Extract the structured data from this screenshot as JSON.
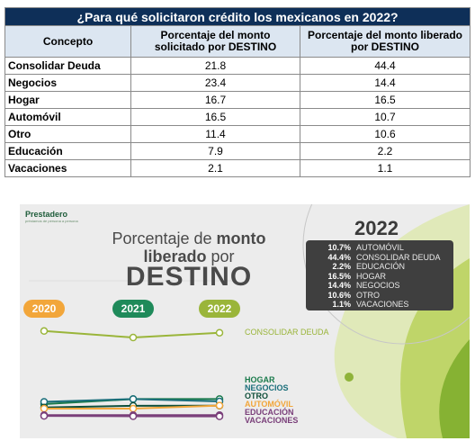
{
  "table": {
    "title": "¿Para qué solicitaron crédito los mexicanos en 2022?",
    "headers": [
      "Concepto",
      "Porcentaje del monto solicitado por DESTINO",
      "Porcentaje del monto liberado por DESTINO"
    ],
    "rows": [
      {
        "concepto": "Consolidar Deuda",
        "solicitado": "21.8",
        "liberado": "44.4"
      },
      {
        "concepto": "Negocios",
        "solicitado": "23.4",
        "liberado": "14.4"
      },
      {
        "concepto": "Hogar",
        "solicitado": "16.7",
        "liberado": "16.5"
      },
      {
        "concepto": "Automóvil",
        "solicitado": "16.5",
        "liberado": "10.7"
      },
      {
        "concepto": "Otro",
        "solicitado": "11.4",
        "liberado": "10.6"
      },
      {
        "concepto": "Educación",
        "solicitado": "7.9",
        "liberado": "2.2"
      },
      {
        "concepto": "Vacaciones",
        "solicitado": "2.1",
        "liberado": "1.1"
      }
    ]
  },
  "infographic": {
    "logo": "Prestadero",
    "logo_tagline": "préstamos de persona a persona",
    "heading_line1_a": "Porcentaje de ",
    "heading_line1_b": "monto",
    "heading_line2_a": "liberado",
    "heading_line2_b": " por",
    "heading_line3": "DESTINO",
    "year_title": "2022",
    "legend": [
      {
        "pct": "10.7%",
        "label": "AUTOMÓVIL"
      },
      {
        "pct": "44.4%",
        "label": "CONSOLIDAR DEUDA"
      },
      {
        "pct": "2.2%",
        "label": "EDUCACIÓN"
      },
      {
        "pct": "16.5%",
        "label": "HOGAR"
      },
      {
        "pct": "14.4%",
        "label": "NEGOCIOS"
      },
      {
        "pct": "10.6%",
        "label": "OTRO"
      },
      {
        "pct": "1.1%",
        "label": "VACACIONES"
      }
    ],
    "colors": {
      "y2020": "#f2a63a",
      "y2021": "#1f8a5a",
      "y2022": "#9ab53a"
    }
  },
  "chart_data": {
    "type": "line",
    "title": "Porcentaje de monto liberado por DESTINO",
    "x": [
      "2020",
      "2021",
      "2022"
    ],
    "series": [
      {
        "name": "CONSOLIDAR DEUDA",
        "color": "#9ab53a",
        "values": [
          46,
          40,
          44.4
        ]
      },
      {
        "name": "HOGAR",
        "color": "#1a7a4c",
        "values": [
          12,
          16.5,
          16.5
        ]
      },
      {
        "name": "NEGOCIOS",
        "color": "#1a6e7a",
        "values": [
          14,
          16.5,
          14.4
        ]
      },
      {
        "name": "OTRO",
        "color": "#0f4f3a",
        "values": [
          9,
          10.5,
          10.6
        ]
      },
      {
        "name": "AUTOMÓVIL",
        "color": "#f2a63a",
        "values": [
          8,
          8,
          10.7
        ]
      },
      {
        "name": "EDUCACIÓN",
        "color": "#7a3f7a",
        "values": [
          2.2,
          2.2,
          2.2
        ]
      },
      {
        "name": "VACACIONES",
        "color": "#7a3f7a",
        "values": [
          1.5,
          1.2,
          1.1
        ]
      }
    ],
    "legend_position": "right"
  }
}
